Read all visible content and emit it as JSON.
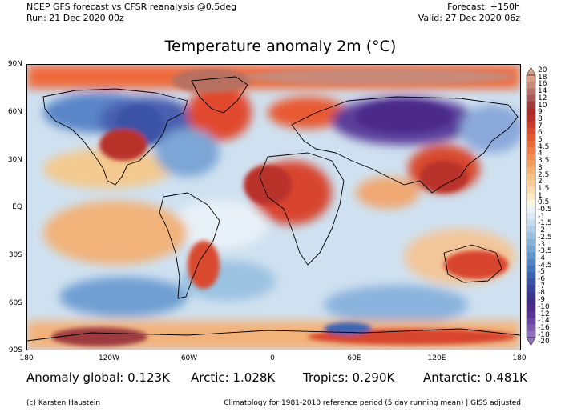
{
  "header": {
    "left_line1": "NCEP GFS forecast vs CFSR reanalysis @0.5deg",
    "left_line2": "Run: 21 Dec 2020 00z",
    "right_line1": "Forecast: +150h",
    "right_line2": "Valid: 27 Dec 2020 06z"
  },
  "map": {
    "title": "Temperature anomaly 2m (°C)",
    "lat_labels": [
      "90N",
      "60N",
      "30N",
      "EQ",
      "30S",
      "60S",
      "90S"
    ],
    "lon_labels": [
      "180",
      "120W",
      "60W",
      "0",
      "60E",
      "120E",
      "180"
    ]
  },
  "colorbar": {
    "labels": [
      "20",
      "18",
      "16",
      "14",
      "12",
      "10",
      "9",
      "8",
      "7",
      "6",
      "5",
      "4.5",
      "4",
      "3.5",
      "3",
      "2.5",
      "2",
      "1.5",
      "1",
      "0.5",
      "-0.5",
      "-1",
      "-1.5",
      "-2",
      "-2.5",
      "-3",
      "-3.5",
      "-4",
      "-4.5",
      "-5",
      "-6",
      "-7",
      "-8",
      "-9",
      "-10",
      "-12",
      "-14",
      "-16",
      "-18",
      "-20"
    ],
    "colors": [
      "#d9a08a",
      "#c88a7a",
      "#b8706a",
      "#a8585a",
      "#9e3b3f",
      "#a82a2a",
      "#b8302a",
      "#c83a2a",
      "#d84a2e",
      "#e25a32",
      "#ea6b3a",
      "#ef7d45",
      "#f28f52",
      "#f4a060",
      "#f6b272",
      "#f7c285",
      "#f8d098",
      "#f9ddae",
      "#faeac6",
      "#fbf4e2",
      "#e9f2f9",
      "#d8e8f4",
      "#c4dcee",
      "#b0cfe8",
      "#9cc2e2",
      "#88b4dc",
      "#75a5d5",
      "#6395cd",
      "#5285c4",
      "#4475ba",
      "#3d63b0",
      "#3b52a5",
      "#3a4399",
      "#3a368d",
      "#402c86",
      "#4b2a8a",
      "#5a3596",
      "#6a46a3",
      "#7c5ab0",
      "#9070bf"
    ]
  },
  "stats": {
    "global": "Anomaly global: 0.123K",
    "arctic": "Arctic: 1.028K",
    "tropics": "Tropics: 0.290K",
    "antarctic": "Antarctic: 0.481K"
  },
  "footer": {
    "author": "(c) Karsten Haustein",
    "note": "Climatology for 1981-2010 reference period (5 day running mean) | GISS adjusted"
  }
}
